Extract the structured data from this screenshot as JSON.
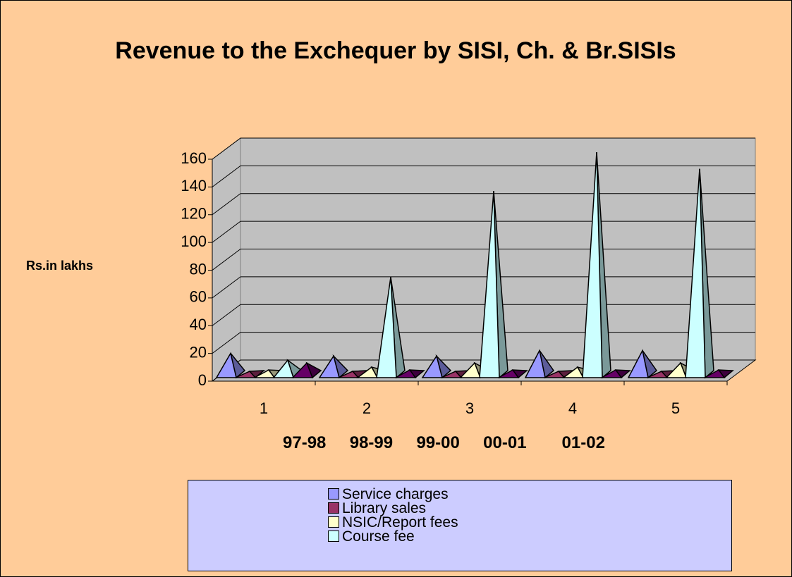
{
  "chart_data": {
    "type": "pyramid3d",
    "title": "Revenue to the Exchequer by SISI, Ch. & Br.SISIs",
    "y_label": "Rs.in lakhs",
    "x_label": "97-98  98-99  99-00  00-01   01-02",
    "categories": [
      "1",
      "2",
      "3",
      "4",
      "5"
    ],
    "series": [
      {
        "name": "Service charges",
        "color": "#9999ff",
        "values": [
          15,
          13,
          13,
          17,
          17
        ]
      },
      {
        "name": "Library sales",
        "color": "#993366",
        "values": [
          2,
          2,
          2,
          2,
          2
        ]
      },
      {
        "name": "NSIC/Report fees",
        "color": "#ffffcc",
        "values": [
          3,
          5,
          8,
          5,
          8
        ]
      },
      {
        "name": "Course fee",
        "color": "#ccffff",
        "values": [
          10,
          70,
          132,
          160,
          148
        ]
      },
      {
        "color": "#660066",
        "values": [
          8,
          3,
          3,
          3,
          3
        ]
      }
    ],
    "ylim": [
      0,
      160
    ],
    "yticks": [
      0,
      20,
      40,
      60,
      80,
      100,
      120,
      140,
      160
    ],
    "grid": true
  }
}
